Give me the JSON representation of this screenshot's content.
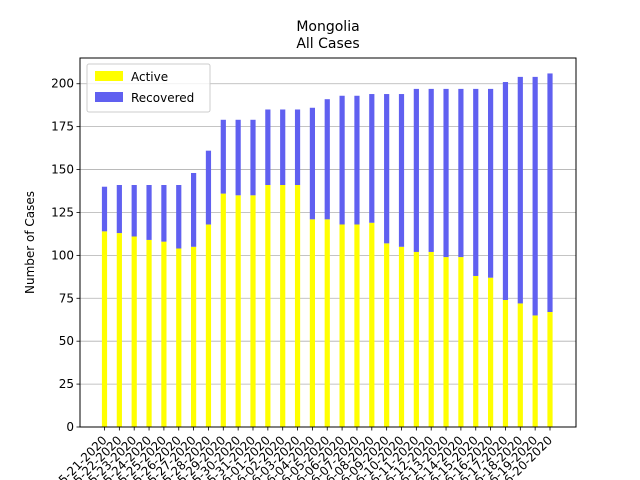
{
  "chart_data": {
    "type": "bar",
    "stacked": true,
    "title": "Mongolia",
    "subtitle": "All Cases",
    "xlabel": "",
    "ylabel": "Number of Cases",
    "ylim": [
      0,
      215
    ],
    "yticks": [
      0,
      25,
      50,
      75,
      100,
      125,
      150,
      175,
      200
    ],
    "grid": "horizontal",
    "legend_position": "top-left",
    "categories": [
      "5-21-2020",
      "5-22-2020",
      "5-23-2020",
      "5-24-2020",
      "5-25-2020",
      "5-26-2020",
      "5-27-2020",
      "5-28-2020",
      "5-29-2020",
      "5-30-2020",
      "5-31-2020",
      "6-01-2020",
      "6-02-2020",
      "6-03-2020",
      "6-04-2020",
      "6-05-2020",
      "6-06-2020",
      "6-07-2020",
      "6-08-2020",
      "6-09-2020",
      "6-10-2020",
      "6-11-2020",
      "6-12-2020",
      "6-13-2020",
      "6-14-2020",
      "6-15-2020",
      "6-16-2020",
      "6-17-2020",
      "6-18-2020",
      "6-19-2020",
      "6-20-2020"
    ],
    "series": [
      {
        "name": "Active",
        "color": "#ffff00",
        "values": [
          114,
          113,
          111,
          109,
          108,
          104,
          105,
          118,
          136,
          135,
          135,
          141,
          141,
          141,
          121,
          121,
          118,
          118,
          119,
          107,
          105,
          102,
          102,
          99,
          99,
          88,
          87,
          74,
          72,
          65,
          67
        ]
      },
      {
        "name": "Recovered",
        "color": "#6060f0",
        "values": [
          26,
          28,
          30,
          32,
          33,
          37,
          43,
          43,
          43,
          44,
          44,
          44,
          44,
          44,
          65,
          70,
          75,
          75,
          75,
          87,
          89,
          95,
          95,
          98,
          98,
          109,
          110,
          127,
          132,
          139,
          139
        ]
      }
    ]
  }
}
